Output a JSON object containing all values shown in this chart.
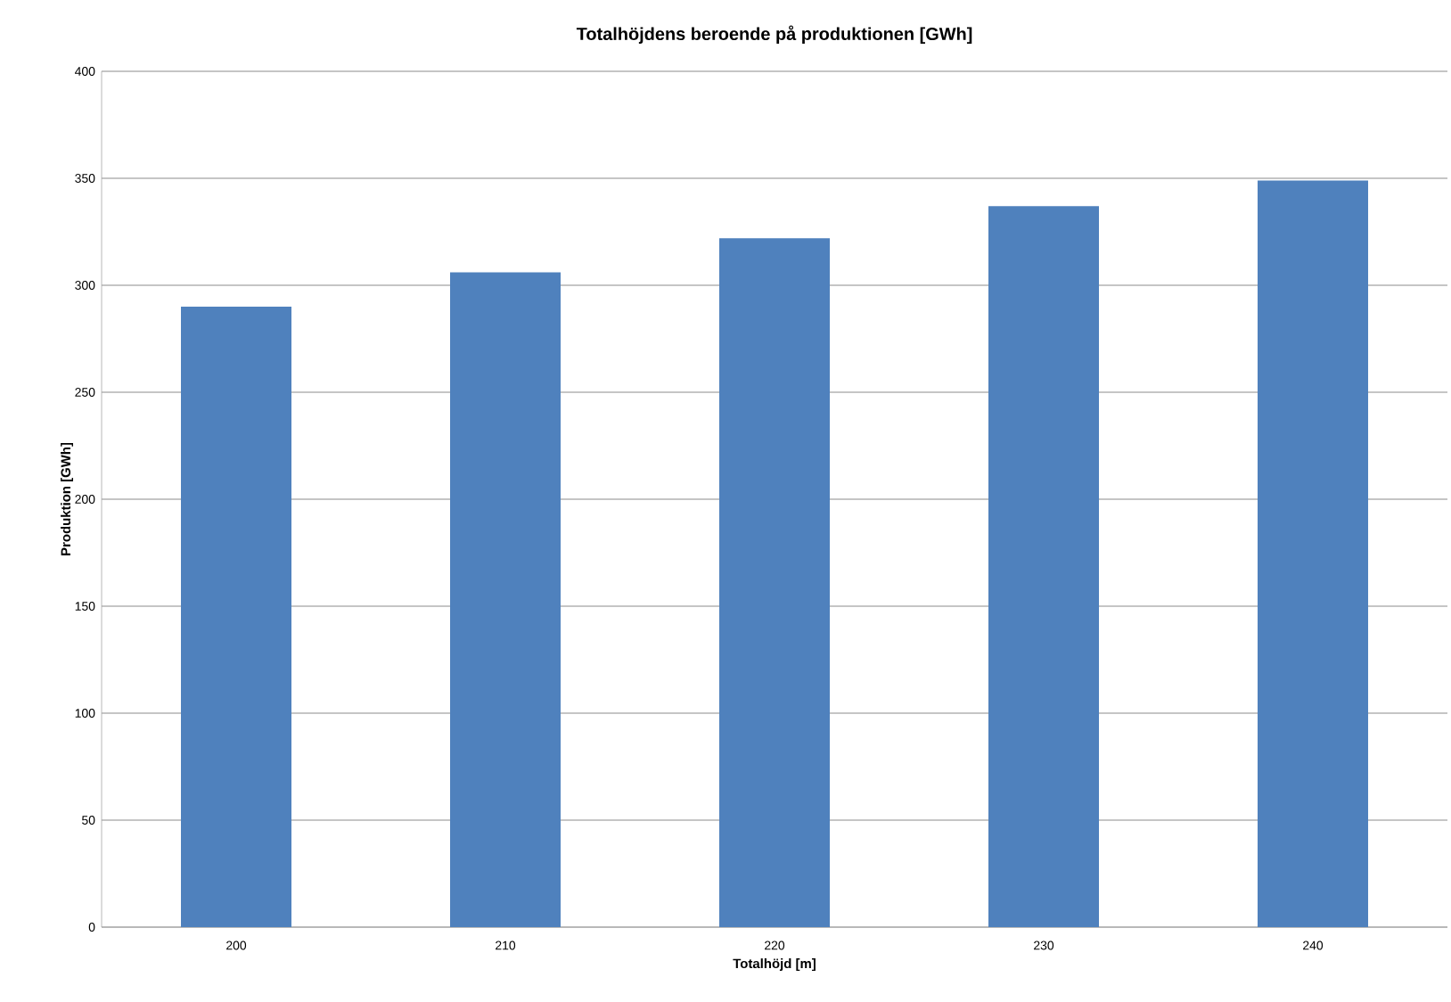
{
  "chart_data": {
    "type": "bar",
    "title": "Totalhöjdens beroende på produktionen [GWh]",
    "xlabel": "Totalhöjd [m]",
    "ylabel": "Produktion [GWh]",
    "categories": [
      "200",
      "210",
      "220",
      "230",
      "240"
    ],
    "values": [
      290,
      306,
      322,
      337,
      349
    ],
    "color": "#4f81bd",
    "ylim": [
      0,
      400
    ],
    "yticks": [
      0,
      50,
      100,
      150,
      200,
      250,
      300,
      350,
      400
    ],
    "grid": "y"
  }
}
